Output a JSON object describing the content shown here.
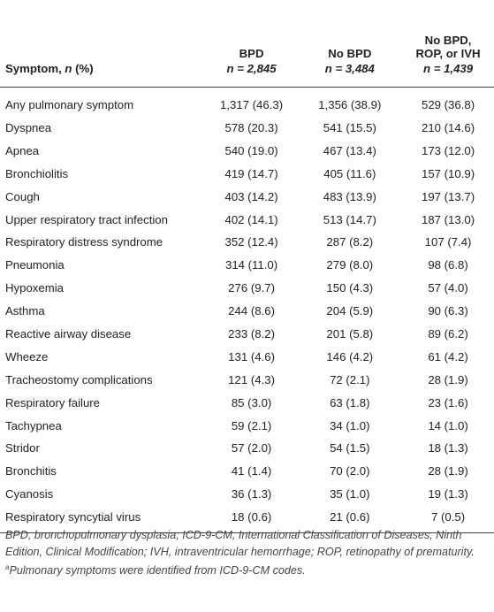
{
  "header": {
    "columns": [
      "BPD",
      "No BPD",
      "No BPD,",
      "ROP, or IVH"
    ],
    "symptom_label": "Symptom, ",
    "symptom_n": "n",
    "symptom_pct": " (%)",
    "n_bpd": "n = 2,845",
    "n_nobpd": "n = 3,484",
    "n_nobpd_rop": "n = 1,439"
  },
  "rows": [
    [
      "Any pulmonary symptom",
      "1,317 (46.3)",
      "1,356 (38.9)",
      "529 (36.8)"
    ],
    [
      "Dyspnea",
      "578 (20.3)",
      "541 (15.5)",
      "210 (14.6)"
    ],
    [
      "Apnea",
      "540 (19.0)",
      "467 (13.4)",
      "173 (12.0)"
    ],
    [
      "Bronchiolitis",
      "419 (14.7)",
      "405 (11.6)",
      "157 (10.9)"
    ],
    [
      "Cough",
      "403 (14.2)",
      "483 (13.9)",
      "197 (13.7)"
    ],
    [
      "Upper respiratory tract infection",
      "402 (14.1)",
      "513 (14.7)",
      "187 (13.0)"
    ],
    [
      "Respiratory distress syndrome",
      "352 (12.4)",
      "287 (8.2)",
      "107 (7.4)"
    ],
    [
      "Pneumonia",
      "314 (11.0)",
      "279 (8.0)",
      "98 (6.8)"
    ],
    [
      "Hypoxemia",
      "276 (9.7)",
      "150 (4.3)",
      "57 (4.0)"
    ],
    [
      "Asthma",
      "244 (8.6)",
      "204 (5.9)",
      "90 (6.3)"
    ],
    [
      "Reactive airway disease",
      "233 (8.2)",
      "201 (5.8)",
      "89 (6.2)"
    ],
    [
      "Wheeze",
      "131 (4.6)",
      "146 (4.2)",
      "61 (4.2)"
    ],
    [
      "Tracheostomy complications",
      "121 (4.3)",
      "72 (2.1)",
      "28 (1.9)"
    ],
    [
      "Respiratory failure",
      "85 (3.0)",
      "63 (1.8)",
      "23 (1.6)"
    ],
    [
      "Tachypnea",
      "59 (2.1)",
      "34 (1.0)",
      "14 (1.0)"
    ],
    [
      "Stridor",
      "57 (2.0)",
      "54 (1.5)",
      "18 (1.3)"
    ],
    [
      "Bronchitis",
      "41 (1.4)",
      "70 (2.0)",
      "28 (1.9)"
    ],
    [
      "Cyanosis",
      "36 (1.3)",
      "35 (1.0)",
      "19 (1.3)"
    ],
    [
      "Respiratory syncytial virus",
      "18 (0.6)",
      "21 (0.6)",
      "7 (0.5)"
    ]
  ],
  "footnotes": {
    "abbrev": "BPD, bronchopulmonary dysplasia; ICD-9-CM, International Classification of Diseases, Ninth Edition, Clinical Modification; IVH, intraventricular hemorrhage; ROP, retinopathy of prematurity.",
    "marker": "a",
    "note": "Pulmonary symptoms were identified from ICD-9-CM codes."
  }
}
